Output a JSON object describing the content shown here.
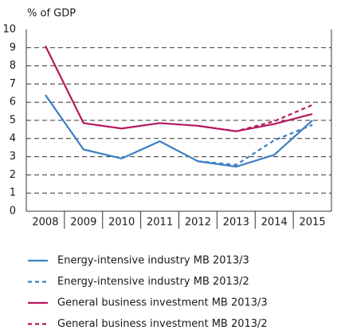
{
  "chart_data": {
    "type": "line",
    "y_label": "% of GDP",
    "categories": [
      "2008",
      "2009",
      "2010",
      "2011",
      "2012",
      "2013",
      "2014",
      "2015"
    ],
    "ylim": [
      0,
      10
    ],
    "yticks": [
      0,
      1,
      2,
      3,
      4,
      5,
      6,
      7,
      8,
      9,
      10
    ],
    "grid": true,
    "series": [
      {
        "name": "Energy-intensive industry MB 2013/3",
        "color": "#3b7fc4",
        "dashed": false,
        "values": [
          6.4,
          3.4,
          2.9,
          3.85,
          2.75,
          2.45,
          3.1,
          5.0
        ]
      },
      {
        "name": "Energy-intensive industry MB 2013/2",
        "color": "#3b7fc4",
        "dashed": true,
        "values": [
          null,
          null,
          null,
          null,
          2.75,
          2.55,
          3.9,
          4.75
        ]
      },
      {
        "name": "General business investment MB 2013/3",
        "color": "#b5175e",
        "dashed": false,
        "values": [
          9.1,
          4.85,
          4.55,
          4.85,
          4.7,
          4.4,
          4.8,
          5.35
        ]
      },
      {
        "name": "General business investment MB 2013/2",
        "color": "#b5175e",
        "dashed": true,
        "values": [
          null,
          null,
          null,
          null,
          4.7,
          4.4,
          4.95,
          5.85
        ]
      }
    ]
  }
}
